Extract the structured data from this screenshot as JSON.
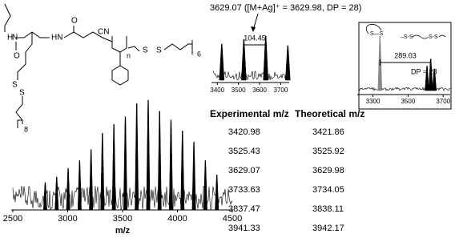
{
  "chart_data": [
    {
      "type": "spectrum",
      "x_label": "m/z",
      "xlim": [
        2500,
        4500
      ],
      "xticks": [
        2500,
        3000,
        3500,
        4000,
        4500
      ],
      "ylim": [
        0,
        100
      ],
      "color": "#000000",
      "x": [
        2795.3,
        2899.8,
        3004.2,
        3108.7,
        3212.9,
        3316.5,
        3420.98,
        3525.43,
        3629.07,
        3733.63,
        3837.47,
        3941.33,
        4045.8,
        4150.2,
        4254.7,
        4359.1
      ],
      "values": [
        25,
        30,
        38,
        45,
        55,
        70,
        78,
        85,
        97,
        100,
        90,
        82,
        72,
        62,
        45,
        32
      ]
    },
    {
      "type": "spectrum",
      "xlim": [
        3380,
        3740
      ],
      "xticks": [
        3400,
        3500,
        3600,
        3700
      ],
      "ylim": [
        0,
        100
      ],
      "color": "#000000",
      "x": [
        3420.98,
        3525.43,
        3629.07,
        3733.63
      ],
      "values": [
        75,
        85,
        92,
        72
      ],
      "annotation": "104.45"
    },
    {
      "type": "spectrum",
      "boxed": true,
      "xlim": [
        3220,
        3740
      ],
      "xticks": [
        3300,
        3500,
        3700
      ],
      "ylim": [
        0,
        100
      ],
      "series": [
        {
          "color": "#888888",
          "x": [
            3340
          ],
          "values": [
            100
          ]
        },
        {
          "color": "#000000",
          "x": [
            3608,
            3629,
            3650
          ],
          "values": [
            45,
            58,
            40
          ]
        }
      ],
      "annotation": "289.03",
      "note": "DP = 28",
      "icon_labels": [
        "S—S",
        "–S-S",
        "S-S"
      ]
    }
  ],
  "annotation": "3629.07 ([M+Ag]⁺ = 3629.98, DP = 28)",
  "table": {
    "header": [
      "Experimental m/z",
      "Theoretical m/z"
    ],
    "rows": [
      [
        "3420.98",
        "3421.86"
      ],
      [
        "3525.43",
        "3525.92"
      ],
      [
        "3629.07",
        "3629.98"
      ],
      [
        "3733.63",
        "3734.05"
      ],
      [
        "3837.47",
        "3838.11"
      ],
      [
        "3941.33",
        "3942.17"
      ]
    ]
  },
  "structure": {
    "labels": [
      "H",
      "N",
      "O",
      "HN",
      "O",
      "CN",
      "n",
      "S",
      "S",
      "6",
      "S",
      "S",
      "8"
    ]
  }
}
